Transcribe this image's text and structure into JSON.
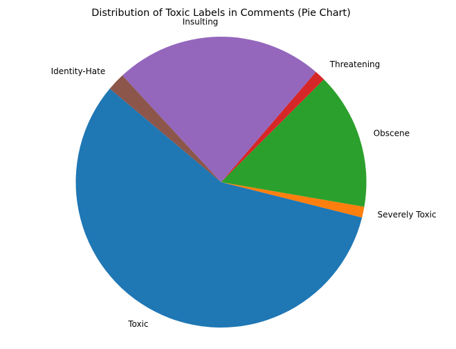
{
  "chart_data": {
    "type": "pie",
    "title": "Distribution of Toxic Labels in Comments (Pie Chart)",
    "start_angle_deg": 140,
    "direction": "counterclockwise",
    "slices": [
      {
        "label": "Toxic",
        "value": 57.2,
        "color": "#1f77b4"
      },
      {
        "label": "Severely Toxic",
        "value": 1.2,
        "color": "#ff7f0e"
      },
      {
        "label": "Obscene",
        "value": 15.2,
        "color": "#2ca02c"
      },
      {
        "label": "Threatening",
        "value": 1.2,
        "color": "#d62728"
      },
      {
        "label": "Insulting",
        "value": 23.2,
        "color": "#9467bd"
      },
      {
        "label": "Identity-Hate",
        "value": 2.0,
        "color": "#8c564b"
      }
    ]
  }
}
